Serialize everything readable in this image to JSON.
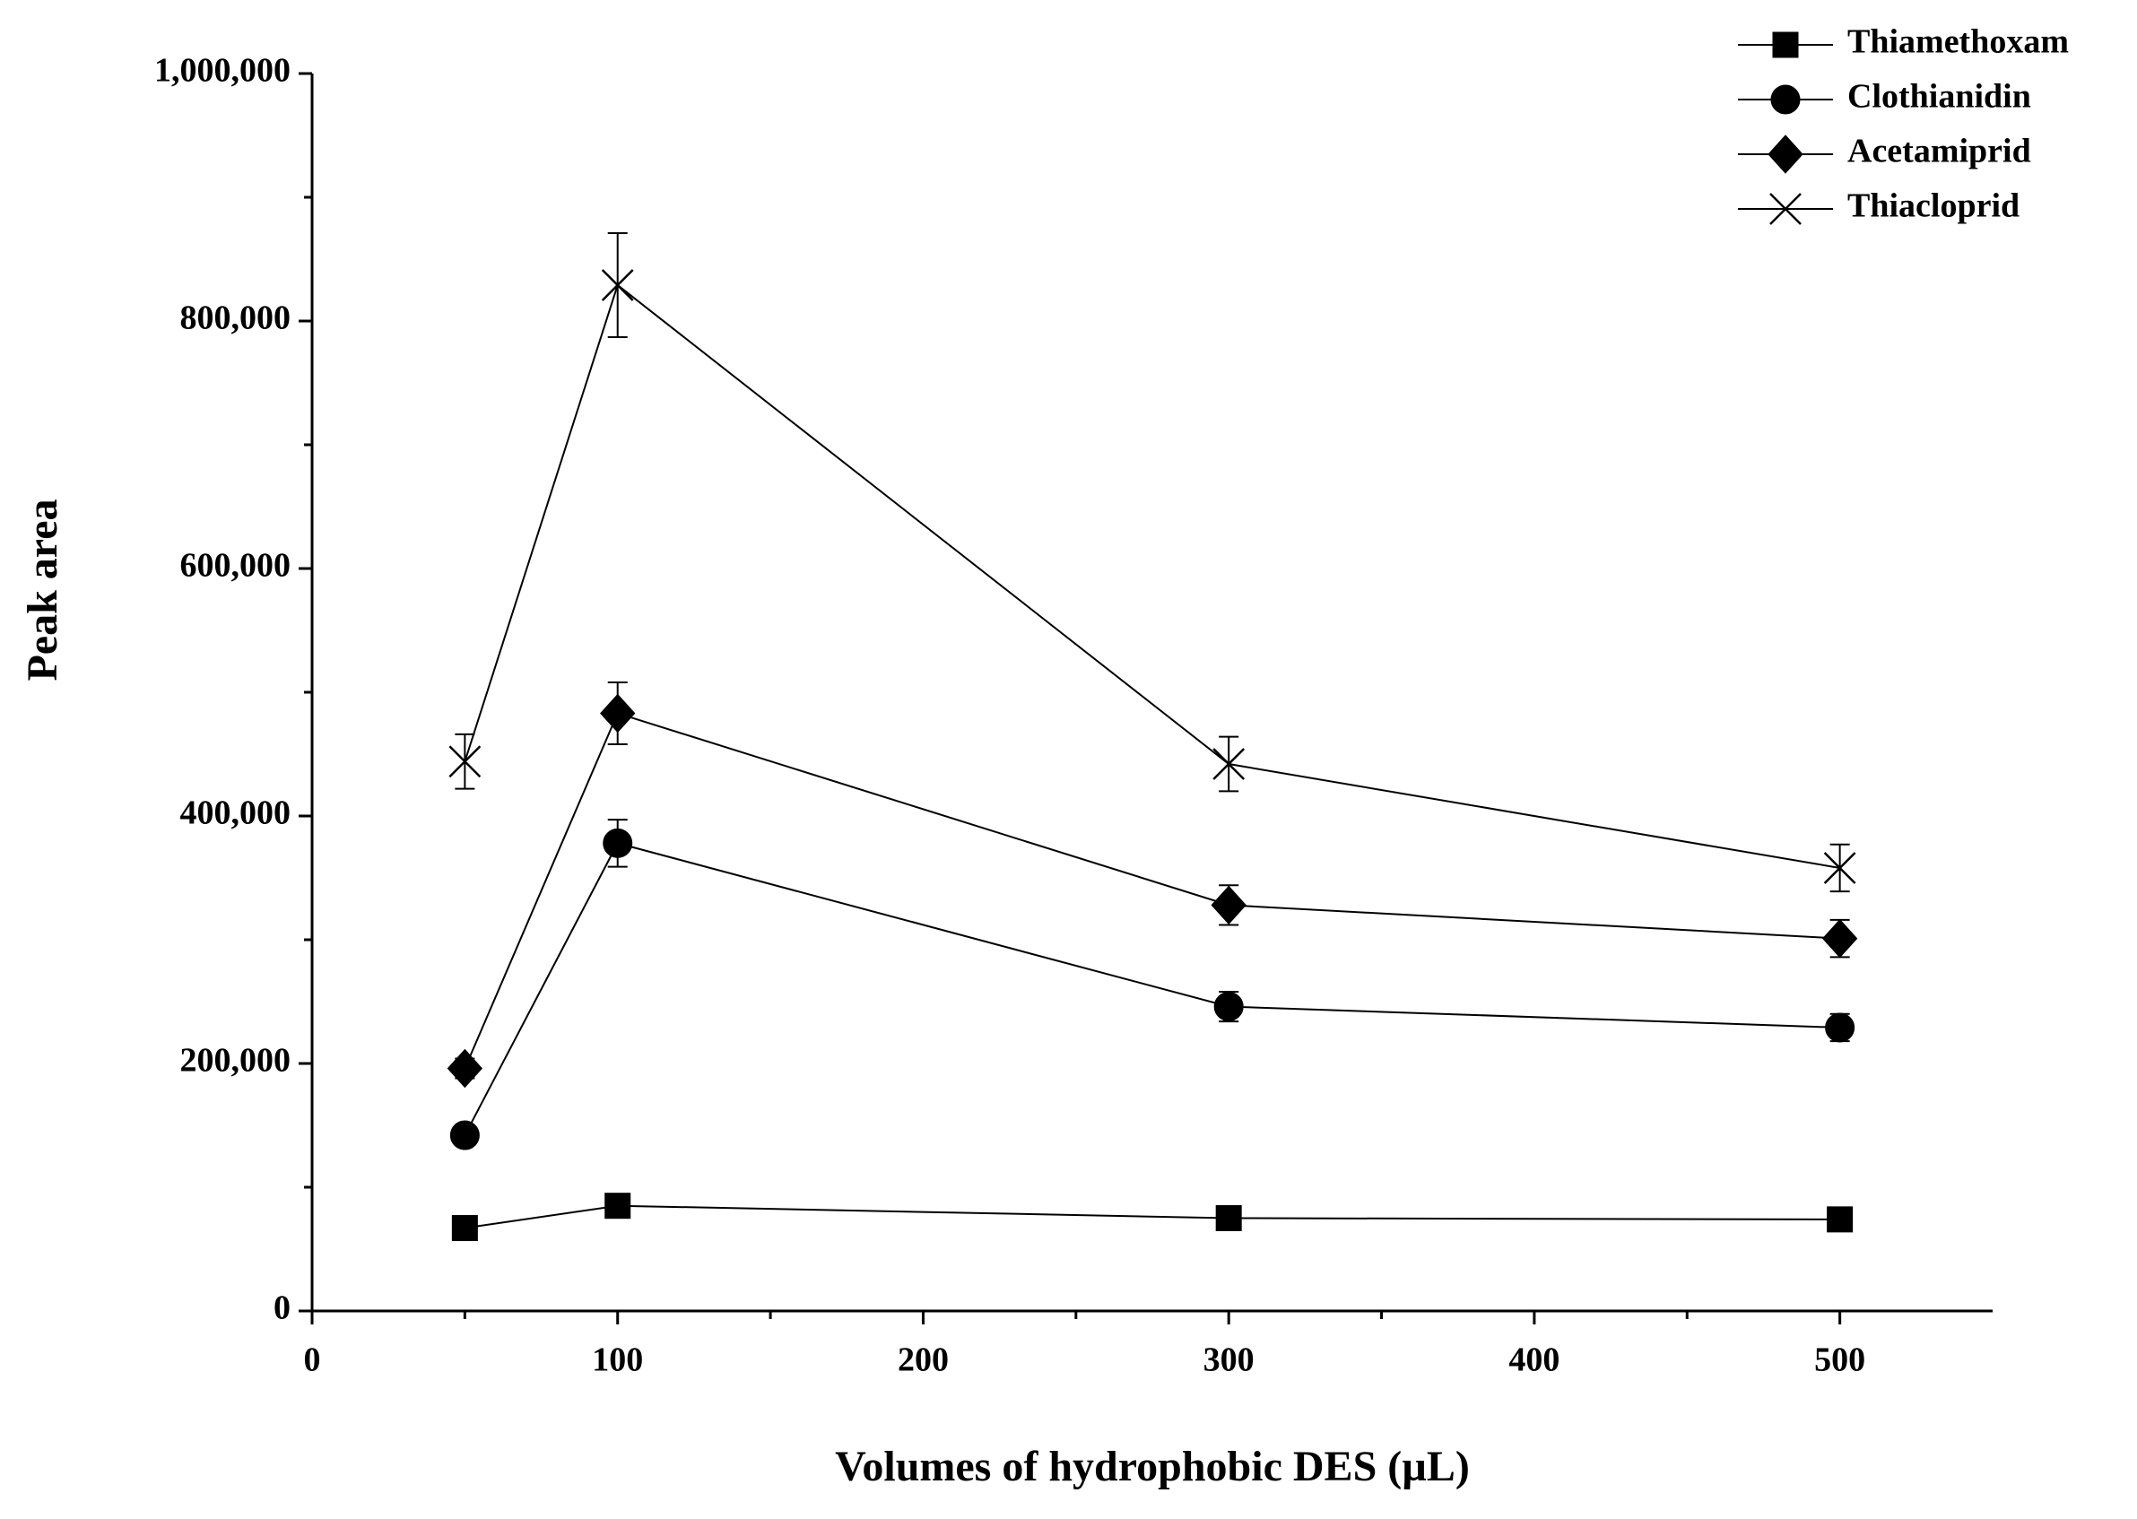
{
  "chart_data": {
    "type": "line",
    "x_label": "Volumes of hydrophobic DES (µL)",
    "y_label": "Peak area",
    "x": [
      50,
      100,
      300,
      500
    ],
    "xlim": [
      0,
      550
    ],
    "xticks": [
      0,
      100,
      200,
      300,
      400,
      500
    ],
    "xminorticks": [
      50,
      150,
      250,
      350,
      450
    ],
    "ylim": [
      0,
      1000000
    ],
    "yticks": [
      0,
      {
        "value": 200000,
        "label": "200,000"
      },
      {
        "value": 400000,
        "label": "400,000"
      },
      {
        "value": 600000,
        "label": "600,000"
      },
      {
        "value": 800000,
        "label": "800,000"
      },
      {
        "value": 1000000,
        "label": "1,000,000"
      }
    ],
    "yminorticks": [
      100000,
      300000,
      500000,
      700000,
      900000
    ],
    "grid": false,
    "legend": "top-right",
    "series": [
      {
        "name": "Thiamethoxam",
        "color": "#000000",
        "marker": "square",
        "values": [
          67000,
          85000,
          75000,
          74000
        ],
        "errors": [
          3000,
          4000,
          3000,
          3000
        ]
      },
      {
        "name": "Clothianidin",
        "color": "#000000",
        "marker": "circle",
        "values": [
          142000,
          378000,
          246000,
          229000
        ],
        "errors": [
          5000,
          19000,
          12000,
          11000
        ]
      },
      {
        "name": "Acetamiprid",
        "color": "#000000",
        "marker": "diamond",
        "values": [
          196000,
          483000,
          328000,
          301000
        ],
        "errors": [
          8000,
          25000,
          16000,
          15000
        ]
      },
      {
        "name": "Thiacloprid",
        "color": "#000000",
        "marker": "cross",
        "values": [
          444000,
          829000,
          442000,
          358000
        ],
        "errors": [
          22000,
          42000,
          22000,
          19000
        ]
      }
    ]
  }
}
